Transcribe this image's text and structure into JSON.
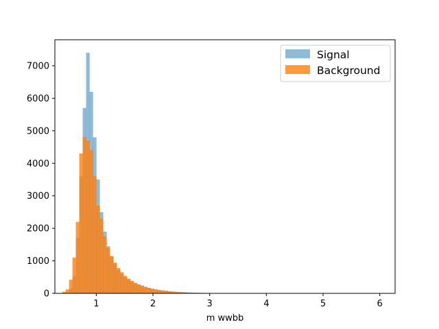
{
  "chart_data": {
    "type": "histogram",
    "xlabel": "m wwbb",
    "ylabel": "",
    "xlim": [
      0.27,
      6.27
    ],
    "ylim": [
      0,
      7800
    ],
    "xticks": [
      1,
      2,
      3,
      4,
      5,
      6
    ],
    "yticks": [
      0,
      1000,
      2000,
      3000,
      4000,
      5000,
      6000,
      7000
    ],
    "grid": false,
    "legend_position": "top-right",
    "bin_start": 0.4,
    "bin_width": 0.06,
    "series": [
      {
        "name": "Signal",
        "color": "#1f77b4",
        "alpha": 0.5,
        "values": [
          0,
          30,
          150,
          530,
          1700,
          3600,
          5700,
          7400,
          6200,
          4800,
          3500,
          2500,
          1900,
          1450,
          1130,
          900,
          720,
          600,
          510,
          430,
          370,
          320,
          280,
          240,
          200,
          170,
          145,
          125,
          108,
          93,
          80,
          68,
          58,
          50,
          43,
          37,
          32,
          27,
          23,
          20,
          17,
          14,
          12,
          10,
          9,
          8,
          6,
          5,
          4,
          4,
          3,
          3,
          2,
          2,
          2,
          1,
          1,
          1,
          1,
          1
        ]
      },
      {
        "name": "Background",
        "color": "#ff7f0e",
        "alpha": 0.8,
        "values": [
          50,
          120,
          420,
          1100,
          2200,
          4300,
          4800,
          4700,
          4400,
          3600,
          2700,
          2300,
          1750,
          1400,
          1150,
          950,
          780,
          650,
          540,
          450,
          380,
          320,
          270,
          230,
          195,
          165,
          140,
          118,
          100,
          85,
          72,
          60,
          50,
          42,
          35,
          30,
          25,
          20,
          16,
          13,
          10,
          8,
          6,
          5,
          4,
          3,
          2,
          2,
          1,
          1,
          1
        ]
      }
    ]
  }
}
